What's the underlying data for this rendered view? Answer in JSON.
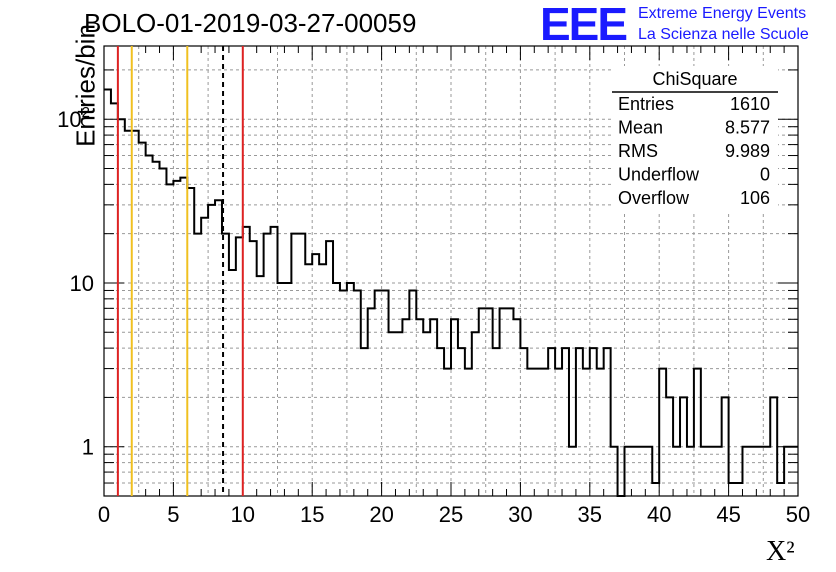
{
  "title": "BOLO-01-2019-03-27-00059",
  "logo": {
    "mark": "EEE",
    "line1": "Extreme Energy Events",
    "line2": "La Scienza nelle Scuole",
    "color": "#1a1aff"
  },
  "stats": {
    "header": "ChiSquare",
    "rows": [
      {
        "label": "Entries",
        "value": "1610"
      },
      {
        "label": "Mean",
        "value": "8.577"
      },
      {
        "label": "RMS",
        "value": "9.989"
      },
      {
        "label": "Underflow",
        "value": "0"
      },
      {
        "label": "Overflow",
        "value": "106"
      }
    ]
  },
  "chart_data": {
    "type": "histogram",
    "title": "BOLO-01-2019-03-27-00059",
    "xlabel": "X²",
    "ylabel": "Entries/bin",
    "xlim": [
      0,
      50
    ],
    "ylim": [
      0.5,
      280
    ],
    "log_y": true,
    "grid": true,
    "bin_width": 0.5,
    "bin_start": 0,
    "counts": [
      152,
      125,
      100,
      85,
      85,
      72,
      60,
      55,
      50,
      40,
      42,
      44,
      38,
      20,
      25,
      30,
      32,
      20,
      12,
      19,
      22,
      18,
      11,
      20,
      22,
      10,
      10,
      20,
      20,
      13,
      15,
      13,
      18,
      10,
      9,
      10,
      9,
      4,
      7,
      9,
      9,
      5,
      5,
      6,
      9,
      6,
      5,
      6,
      4,
      3,
      6,
      4,
      3,
      5,
      7,
      7,
      4,
      7,
      7,
      6,
      4,
      3,
      3,
      3,
      4,
      3,
      4,
      1,
      4,
      3,
      4,
      3,
      4,
      1,
      0,
      1,
      1,
      1,
      1,
      0.6,
      3,
      2,
      1,
      2,
      1,
      3,
      1,
      1,
      1,
      2,
      0.6,
      0.6,
      1,
      1,
      1,
      1,
      2,
      0.6,
      1,
      1
    ],
    "x_ticks": [
      "0",
      "5",
      "10",
      "15",
      "20",
      "25",
      "30",
      "35",
      "40",
      "45",
      "50"
    ],
    "y_ticks": [
      {
        "value": 1,
        "label": "1"
      },
      {
        "value": 10,
        "label": "10"
      },
      {
        "value": 100,
        "label": "10²"
      }
    ],
    "vertical_lines": [
      {
        "x": 1.0,
        "color": "#dd2222",
        "style": "solid"
      },
      {
        "x": 2.0,
        "color": "#f0c020",
        "style": "solid"
      },
      {
        "x": 6.0,
        "color": "#f0c020",
        "style": "solid"
      },
      {
        "x": 8.577,
        "color": "#000000",
        "style": "dashed"
      },
      {
        "x": 10.0,
        "color": "#dd2222",
        "style": "solid"
      }
    ]
  }
}
